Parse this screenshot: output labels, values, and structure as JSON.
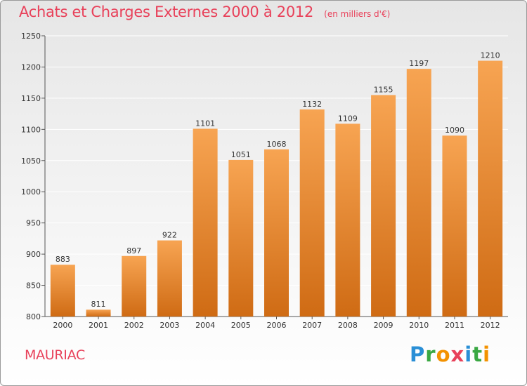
{
  "chart_data": {
    "type": "bar",
    "title": "Achats et Charges Externes 2000 à 2012",
    "subtitle": "(en milliers d'€)",
    "categories": [
      "2000",
      "2001",
      "2002",
      "2003",
      "2004",
      "2005",
      "2006",
      "2007",
      "2008",
      "2009",
      "2010",
      "2011",
      "2012"
    ],
    "values": [
      883,
      811,
      897,
      922,
      1101,
      1051,
      1068,
      1132,
      1109,
      1155,
      1197,
      1090,
      1210
    ],
    "ylim": [
      800,
      1250
    ],
    "yticks": [
      800,
      850,
      900,
      950,
      1000,
      1050,
      1100,
      1150,
      1200,
      1250
    ],
    "grid": true,
    "bar_color_top": "#f7a452",
    "bar_color_bottom": "#cf6b14"
  },
  "commune": "MAURIAC",
  "logo": {
    "letters": [
      "P",
      "r",
      "o",
      "x",
      "i",
      "t",
      "i"
    ],
    "colors": [
      "#2a8fd6",
      "#3aa843",
      "#f39200",
      "#e8415a",
      "#2a8fd6",
      "#3aa843",
      "#f39200"
    ]
  },
  "colors": {
    "title": "#e8415a",
    "grid": "#ffffff",
    "axis": "#555555"
  }
}
